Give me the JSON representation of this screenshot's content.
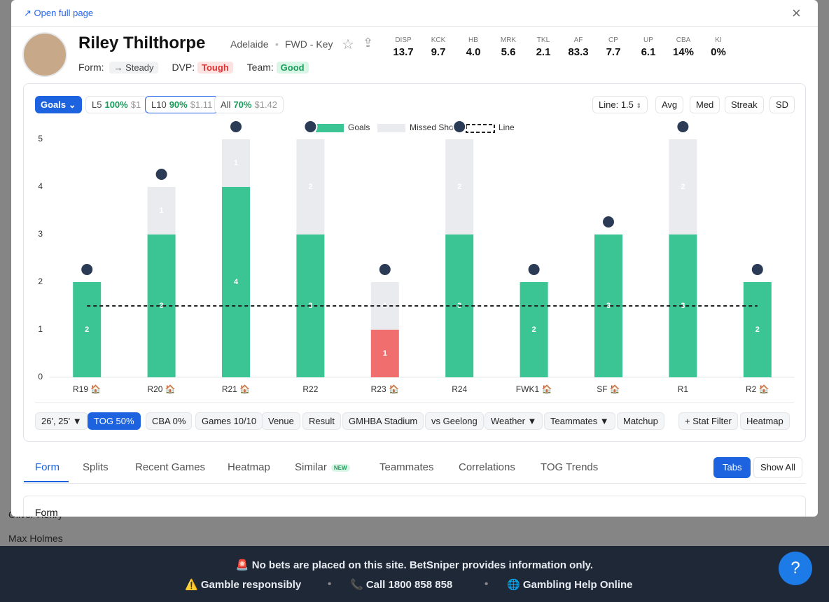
{
  "background": {
    "names": [
      "Oliver Henry",
      "Max Holmes"
    ]
  },
  "header": {
    "open_full_page": "Open full page"
  },
  "player": {
    "name": "Riley Thilthorpe",
    "team": "Adelaide",
    "position": "FWD - Key",
    "form_label": "Form:",
    "form": "→ Steady",
    "dvp_label": "DVP:",
    "dvp": "Tough",
    "team_label": "Team:",
    "team_rating": "Good"
  },
  "stats": [
    {
      "label": "DISP",
      "value": "13.7"
    },
    {
      "label": "KCK",
      "value": "9.7"
    },
    {
      "label": "HB",
      "value": "4.0"
    },
    {
      "label": "MRK",
      "value": "5.6"
    },
    {
      "label": "TKL",
      "value": "2.1"
    },
    {
      "label": "AF",
      "value": "83.3"
    },
    {
      "label": "CP",
      "value": "7.7"
    },
    {
      "label": "UP",
      "value": "6.1"
    },
    {
      "label": "CBA",
      "value": "14%"
    },
    {
      "label": "KI",
      "value": "0%"
    }
  ],
  "controls": {
    "stat": "Goals",
    "ranges": [
      {
        "label": "L5",
        "pct": "100%",
        "price": "$1"
      },
      {
        "label": "L10",
        "pct": "90%",
        "price": "$1.11"
      },
      {
        "label": "All",
        "pct": "70%",
        "price": "$1.42"
      }
    ],
    "line_label": "Line:",
    "buttons": [
      "Avg",
      "Med",
      "Streak",
      "SD"
    ]
  },
  "chart_data": {
    "type": "stacked_bar",
    "categories": [
      "R19 🏠",
      "R20 🏠",
      "R21 🏠",
      "R22",
      "R23 🏠",
      "R24",
      "FWK1 🏠",
      "SF 🏠",
      "R1",
      "R2 🏠"
    ],
    "series": [
      {
        "name": "Goals",
        "color": "#3cc594",
        "values": [
          2,
          3,
          4,
          3,
          1,
          3,
          2,
          3,
          3,
          2
        ]
      },
      {
        "name": "Missed Shots",
        "color": "#e9ebef",
        "values": [
          0,
          1,
          1,
          2,
          1,
          2,
          0,
          0,
          2,
          0
        ]
      }
    ],
    "below_line_color": "#f06e6e",
    "line": 1.5,
    "line_name": "Line",
    "ylim": [
      0,
      5
    ],
    "yticks": [
      0,
      1,
      2,
      3,
      4,
      5
    ],
    "grid": false
  },
  "filters": [
    "26', 25' ▼",
    "TOG 50%",
    "CBA 0%",
    "Games 10/10",
    "Venue",
    "Result",
    "GMHBA Stadium",
    "vs Geelong",
    "Weather ▼",
    "Teammates ▼",
    "Matchup",
    "+ Stat Filter",
    "Heatmap"
  ],
  "tabs": {
    "items": [
      "Form",
      "Splits",
      "Recent Games",
      "Heatmap",
      "Similar",
      "Teammates",
      "Correlations",
      "TOG Trends"
    ],
    "badge": "NEW",
    "view_buttons": [
      "Tabs",
      "Show All"
    ],
    "section_title": "Form"
  },
  "banner": {
    "notice": "🚨 No bets are placed on this site. BetSniper provides information only.",
    "items": [
      "⚠️ Gamble responsibly",
      "📞 Call 1800 858 858",
      "🌐 Gambling Help Online"
    ]
  }
}
